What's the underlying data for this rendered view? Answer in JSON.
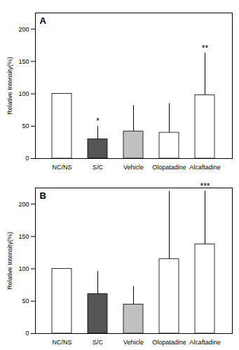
{
  "chart_data": [
    {
      "type": "bar",
      "title": "A",
      "categories": [
        "NC/NS",
        "S/C",
        "Vehicle",
        "Olopatadine",
        "Alcaftadine"
      ],
      "values": [
        100,
        30,
        42,
        40,
        98
      ],
      "errors": [
        0,
        20,
        40,
        45,
        65
      ],
      "colors": [
        "white",
        "#555555",
        "#c0c0c0",
        "white",
        "white"
      ],
      "annotations": [
        {
          "category": "S/C",
          "text": "*"
        },
        {
          "category": "Alcaftadine",
          "text": "**"
        }
      ],
      "ylabel": "Relative Intensity(%)",
      "ylim": [
        0,
        225
      ],
      "yticks": [
        0,
        50,
        100,
        150,
        200
      ],
      "grid": false
    },
    {
      "type": "bar",
      "title": "B",
      "categories": [
        "NC/NS",
        "S/C",
        "Vehicle",
        "Olopatadine",
        "Alcaftadine"
      ],
      "values": [
        100,
        61,
        45,
        115,
        138
      ],
      "errors": [
        0,
        35,
        28,
        105,
        82
      ],
      "colors": [
        "white",
        "#555555",
        "#c0c0c0",
        "white",
        "white"
      ],
      "annotations": [
        {
          "category": "Alcaftadine",
          "text": "***"
        }
      ],
      "ylabel": "Relative Intensity(%)",
      "ylim": [
        0,
        225
      ],
      "yticks": [
        0,
        50,
        100,
        150,
        200
      ],
      "grid": false
    }
  ]
}
